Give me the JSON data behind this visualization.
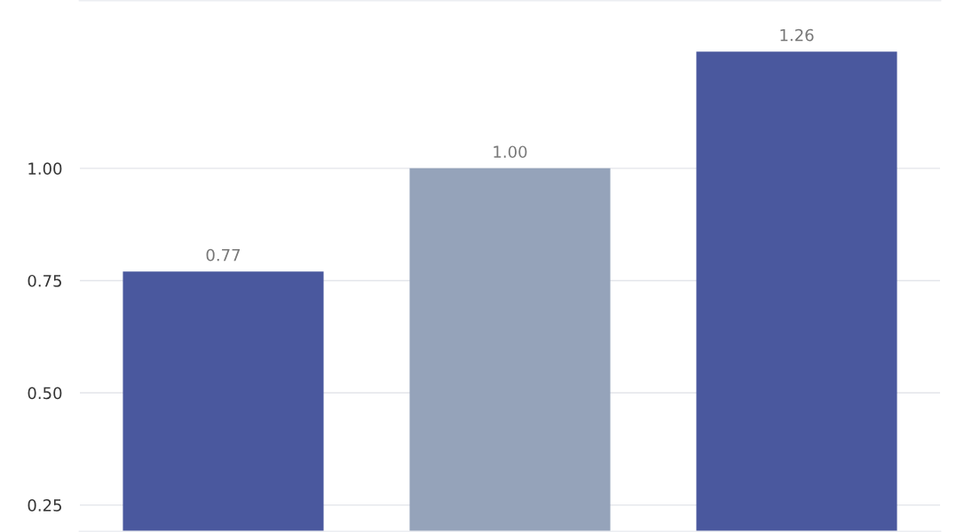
{
  "chart_data": {
    "type": "bar",
    "categories": [
      null,
      null,
      null
    ],
    "values": [
      0.77,
      1.0,
      1.26
    ],
    "value_labels": [
      "0.77",
      "1.00",
      "1.26"
    ],
    "colors": [
      "#4a589e",
      "#95a3ba",
      "#4a589e"
    ],
    "ylim": [
      0.19,
      1.375
    ],
    "yticks": [
      {
        "value": 0.25,
        "label": "0.25"
      },
      {
        "value": 0.5,
        "label": "0.50"
      },
      {
        "value": 0.75,
        "label": "0.75"
      },
      {
        "value": 1.0,
        "label": "1.00"
      }
    ],
    "grid": "y",
    "tick_labels": "y"
  }
}
